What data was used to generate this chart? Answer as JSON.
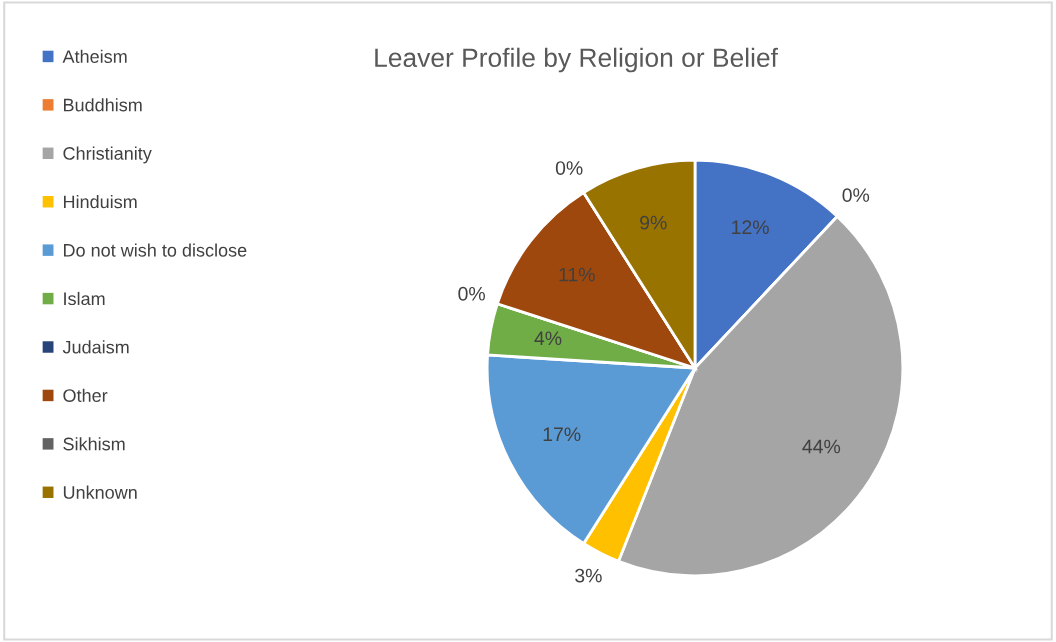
{
  "chart_data": {
    "type": "pie",
    "title": "Leaver Profile by Religion or Belief",
    "categories": [
      "Atheism",
      "Buddhism",
      "Christianity",
      "Hinduism",
      "Do not wish to disclose",
      "Islam",
      "Judaism",
      "Other",
      "Sikhism",
      "Unknown"
    ],
    "values": [
      12,
      0,
      44,
      3,
      17,
      4,
      0,
      11,
      0,
      9
    ],
    "colors": [
      "#4472c4",
      "#ed7d31",
      "#a5a5a5",
      "#ffc000",
      "#5b9bd5",
      "#70ad47",
      "#264478",
      "#9e480e",
      "#636363",
      "#997300"
    ],
    "value_labels": [
      "12%",
      "0%",
      "44%",
      "3%",
      "17%",
      "4%",
      "0%",
      "11%",
      "0%",
      "9%"
    ],
    "legend": "left"
  }
}
